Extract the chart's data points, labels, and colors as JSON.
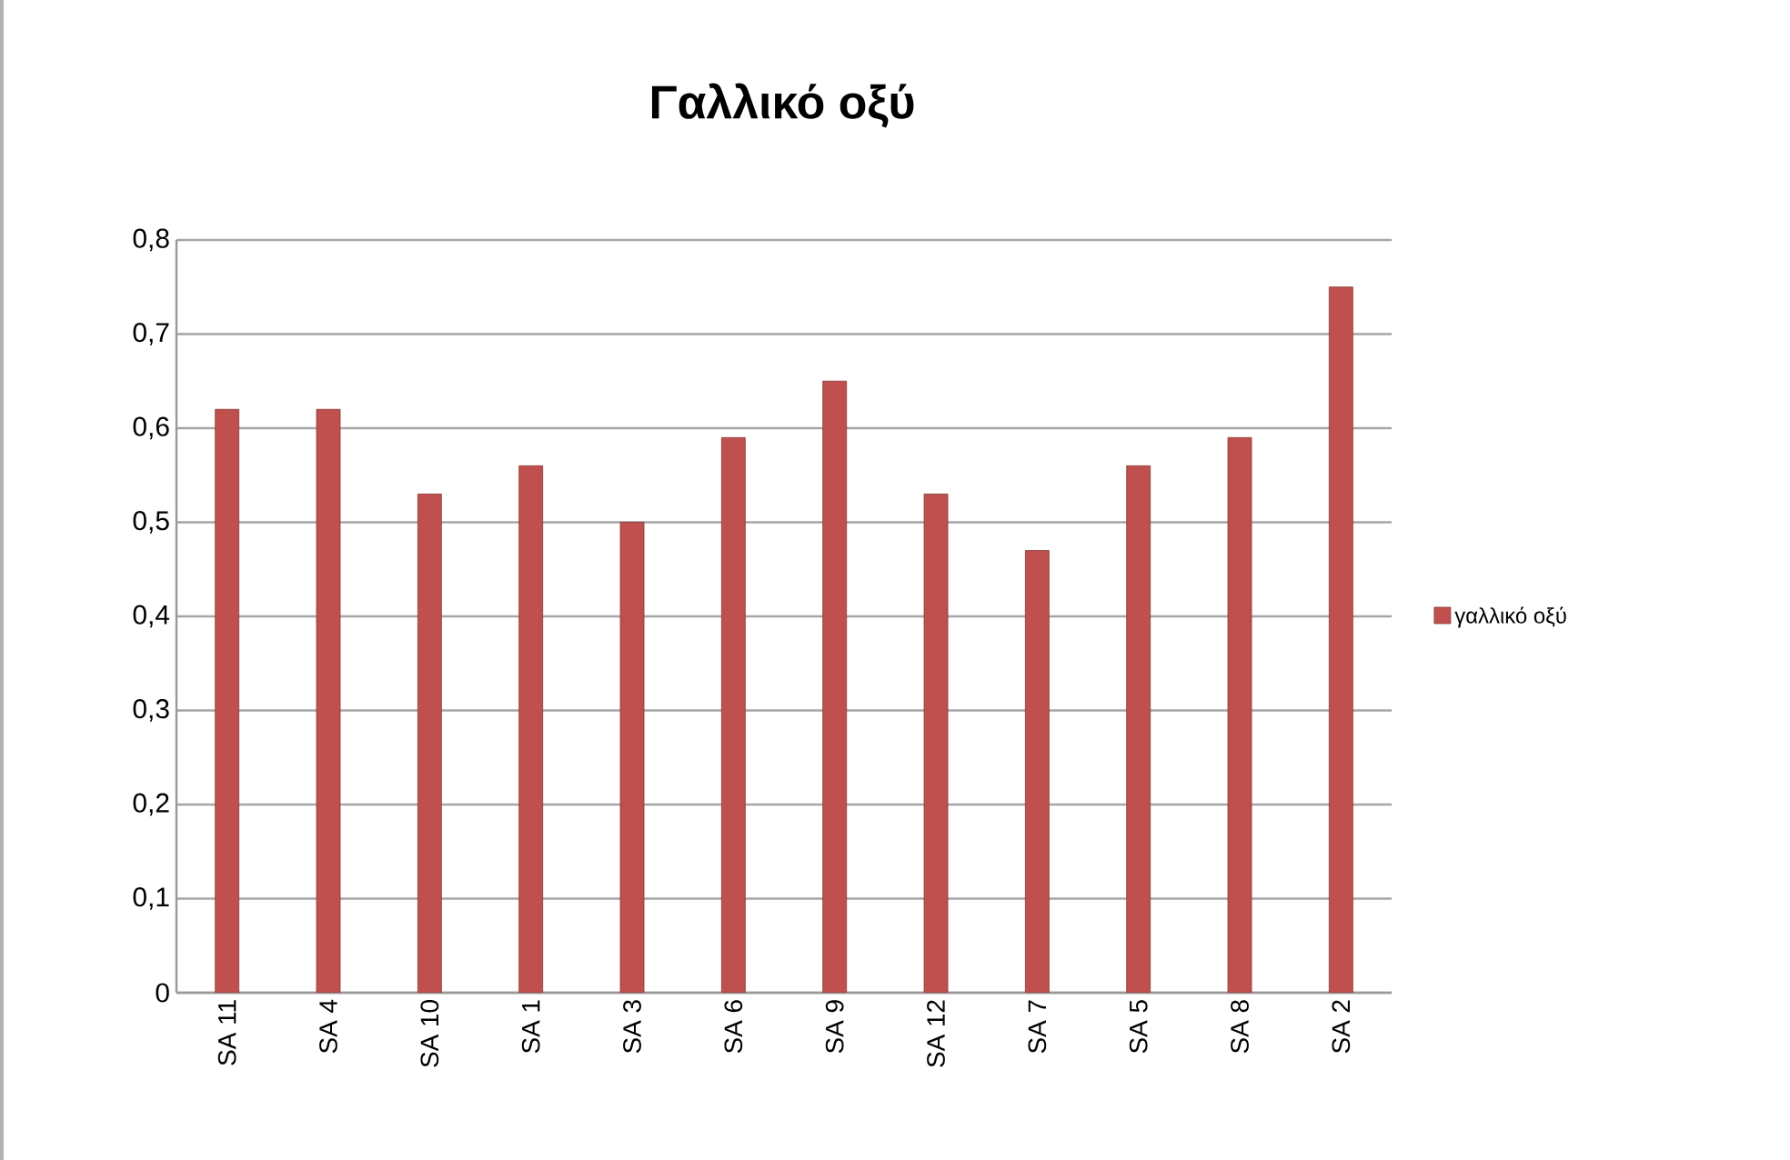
{
  "chart_data": {
    "type": "bar",
    "title": "Γαλλικό οξύ",
    "categories": [
      "SA 11",
      "SA 4",
      "SA 10",
      "SA 1",
      "SA 3",
      "SA 6",
      "SA 9",
      "SA 12",
      "SA 7",
      "SA 5",
      "SA 8",
      "SA 2"
    ],
    "series": [
      {
        "name": "γαλλικό οξύ",
        "color": "#c0504d",
        "values": [
          0.62,
          0.62,
          0.53,
          0.56,
          0.5,
          0.59,
          0.65,
          0.53,
          0.47,
          0.56,
          0.59,
          0.75
        ]
      }
    ],
    "ylim": [
      0,
      0.8
    ],
    "yticks": [
      0,
      {
        "value": 0.1,
        "label": "0,1"
      },
      {
        "value": 0.2,
        "label": "0,2"
      },
      {
        "value": 0.3,
        "label": "0,3"
      },
      {
        "value": 0.4,
        "label": "0,4"
      },
      {
        "value": 0.5,
        "label": "0,5"
      },
      {
        "value": 0.6,
        "label": "0,6"
      },
      {
        "value": 0.7,
        "label": "0,7"
      },
      {
        "value": 0.8,
        "label": "0,8"
      }
    ],
    "grid": "y",
    "legend": "right"
  }
}
